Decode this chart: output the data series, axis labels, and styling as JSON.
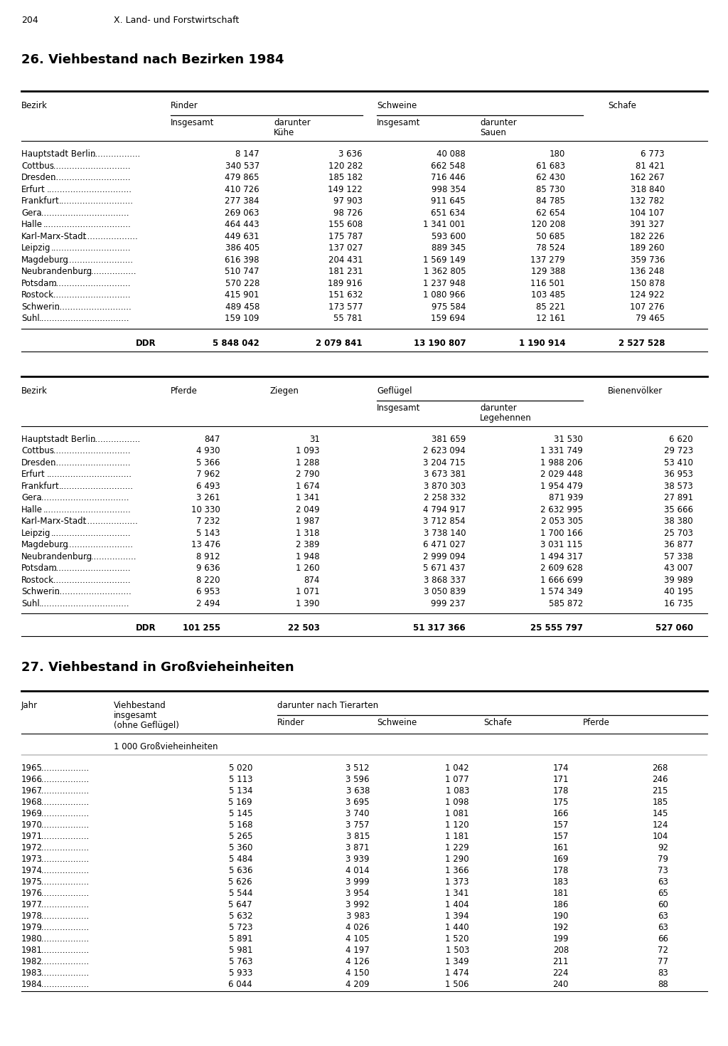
{
  "page_header": "204",
  "page_header2": "X. Land- und Forstwirtschaft",
  "title1": "26. Viehbestand nach Bezirken 1984",
  "title2": "27. Viehbestand in Großvieheinheiten",
  "table1_rows": [
    [
      "Hauptstadt Berlin",
      "8 147",
      "3 636",
      "40 088",
      "180",
      "6 773"
    ],
    [
      "Cottbus",
      "340 537",
      "120 282",
      "662 548",
      "61 683",
      "81 421"
    ],
    [
      "Dresden",
      "479 865",
      "185 182",
      "716 446",
      "62 430",
      "162 267"
    ],
    [
      "Erfurt",
      "410 726",
      "149 122",
      "998 354",
      "85 730",
      "318 840"
    ],
    [
      "Frankfurt",
      "277 384",
      "97 903",
      "911 645",
      "84 785",
      "132 782"
    ],
    [
      "Gera",
      "269 063",
      "98 726",
      "651 634",
      "62 654",
      "104 107"
    ],
    [
      "Halle",
      "464 443",
      "155 608",
      "1 341 001",
      "120 208",
      "391 327"
    ],
    [
      "Karl-Marx-Stadt",
      "449 631",
      "175 787",
      "593 600",
      "50 685",
      "182 226"
    ],
    [
      "Leipzig",
      "386 405",
      "137 027",
      "889 345",
      "78 524",
      "189 260"
    ],
    [
      "Magdeburg",
      "616 398",
      "204 431",
      "1 569 149",
      "137 279",
      "359 736"
    ],
    [
      "Neubrandenburg",
      "510 747",
      "181 231",
      "1 362 805",
      "129 388",
      "136 248"
    ],
    [
      "Potsdam",
      "570 228",
      "189 916",
      "1 237 948",
      "116 501",
      "150 878"
    ],
    [
      "Rostock",
      "415 901",
      "151 632",
      "1 080 966",
      "103 485",
      "124 922"
    ],
    [
      "Schwerin",
      "489 458",
      "173 577",
      "975 584",
      "85 221",
      "107 276"
    ],
    [
      "Suhl",
      "159 109",
      "55 781",
      "159 694",
      "12 161",
      "79 465"
    ]
  ],
  "table1_total": [
    "DDR",
    "5 848 042",
    "2 079 841",
    "13 190 807",
    "1 190 914",
    "2 527 528"
  ],
  "table2_rows": [
    [
      "Hauptstadt Berlin",
      "847",
      "31",
      "381 659",
      "31 530",
      "6 620"
    ],
    [
      "Cottbus",
      "4 930",
      "1 093",
      "2 623 094",
      "1 331 749",
      "29 723"
    ],
    [
      "Dresden",
      "5 366",
      "1 288",
      "3 204 715",
      "1 988 206",
      "53 410"
    ],
    [
      "Erfurt",
      "7 962",
      "2 790",
      "3 673 381",
      "2 029 448",
      "36 953"
    ],
    [
      "Frankfurt",
      "6 493",
      "1 674",
      "3 870 303",
      "1 954 479",
      "38 573"
    ],
    [
      "Gera",
      "3 261",
      "1 341",
      "2 258 332",
      "871 939",
      "27 891"
    ],
    [
      "Halle",
      "10 330",
      "2 049",
      "4 794 917",
      "2 632 995",
      "35 666"
    ],
    [
      "Karl-Marx-Stadt",
      "7 232",
      "1 987",
      "3 712 854",
      "2 053 305",
      "38 380"
    ],
    [
      "Leipzig",
      "5 143",
      "1 318",
      "3 738 140",
      "1 700 166",
      "25 703"
    ],
    [
      "Magdeburg",
      "13 476",
      "2 389",
      "6 471 027",
      "3 031 115",
      "36 877"
    ],
    [
      "Neubrandenburg",
      "8 912",
      "1 948",
      "2 999 094",
      "1 494 317",
      "57 338"
    ],
    [
      "Potsdam",
      "9 636",
      "1 260",
      "5 671 437",
      "2 609 628",
      "43 007"
    ],
    [
      "Rostock",
      "8 220",
      "874",
      "3 868 337",
      "1 666 699",
      "39 989"
    ],
    [
      "Schwerin",
      "6 953",
      "1 071",
      "3 050 839",
      "1 574 349",
      "40 195"
    ],
    [
      "Suhl",
      "2 494",
      "1 390",
      "999 237",
      "585 872",
      "16 735"
    ]
  ],
  "table2_total": [
    "DDR",
    "101 255",
    "22 503",
    "51 317 366",
    "25 555 797",
    "527 060"
  ],
  "table3_rows": [
    [
      "1965",
      "5 020",
      "3 512",
      "1 042",
      "174",
      "268"
    ],
    [
      "1966",
      "5 113",
      "3 596",
      "1 077",
      "171",
      "246"
    ],
    [
      "1967",
      "5 134",
      "3 638",
      "1 083",
      "178",
      "215"
    ],
    [
      "1968",
      "5 169",
      "3 695",
      "1 098",
      "175",
      "185"
    ],
    [
      "1969",
      "5 145",
      "3 740",
      "1 081",
      "166",
      "145"
    ],
    [
      "1970",
      "5 168",
      "3 757",
      "1 120",
      "157",
      "124"
    ],
    [
      "1971",
      "5 265",
      "3 815",
      "1 181",
      "157",
      "104"
    ],
    [
      "1972",
      "5 360",
      "3 871",
      "1 229",
      "161",
      "92"
    ],
    [
      "1973",
      "5 484",
      "3 939",
      "1 290",
      "169",
      "79"
    ],
    [
      "1974",
      "5 636",
      "4 014",
      "1 366",
      "178",
      "73"
    ],
    [
      "1975",
      "5 626",
      "3 999",
      "1 373",
      "183",
      "63"
    ],
    [
      "1976",
      "5 544",
      "3 954",
      "1 341",
      "181",
      "65"
    ],
    [
      "1977",
      "5 647",
      "3 992",
      "1 404",
      "186",
      "60"
    ],
    [
      "1978",
      "5 632",
      "3 983",
      "1 394",
      "190",
      "63"
    ],
    [
      "1979",
      "5 723",
      "4 026",
      "1 440",
      "192",
      "63"
    ],
    [
      "1980",
      "5 891",
      "4 105",
      "1 520",
      "199",
      "66"
    ],
    [
      "1981",
      "5 981",
      "4 197",
      "1 503",
      "208",
      "72"
    ],
    [
      "1982",
      "5 763",
      "4 126",
      "1 349",
      "211",
      "77"
    ],
    [
      "1983",
      "5 933",
      "4 150",
      "1 474",
      "224",
      "83"
    ],
    [
      "1984",
      "6 044",
      "4 209",
      "1 506",
      "240",
      "88"
    ]
  ],
  "table3_unit": "1 000 Großvieheinheiten"
}
